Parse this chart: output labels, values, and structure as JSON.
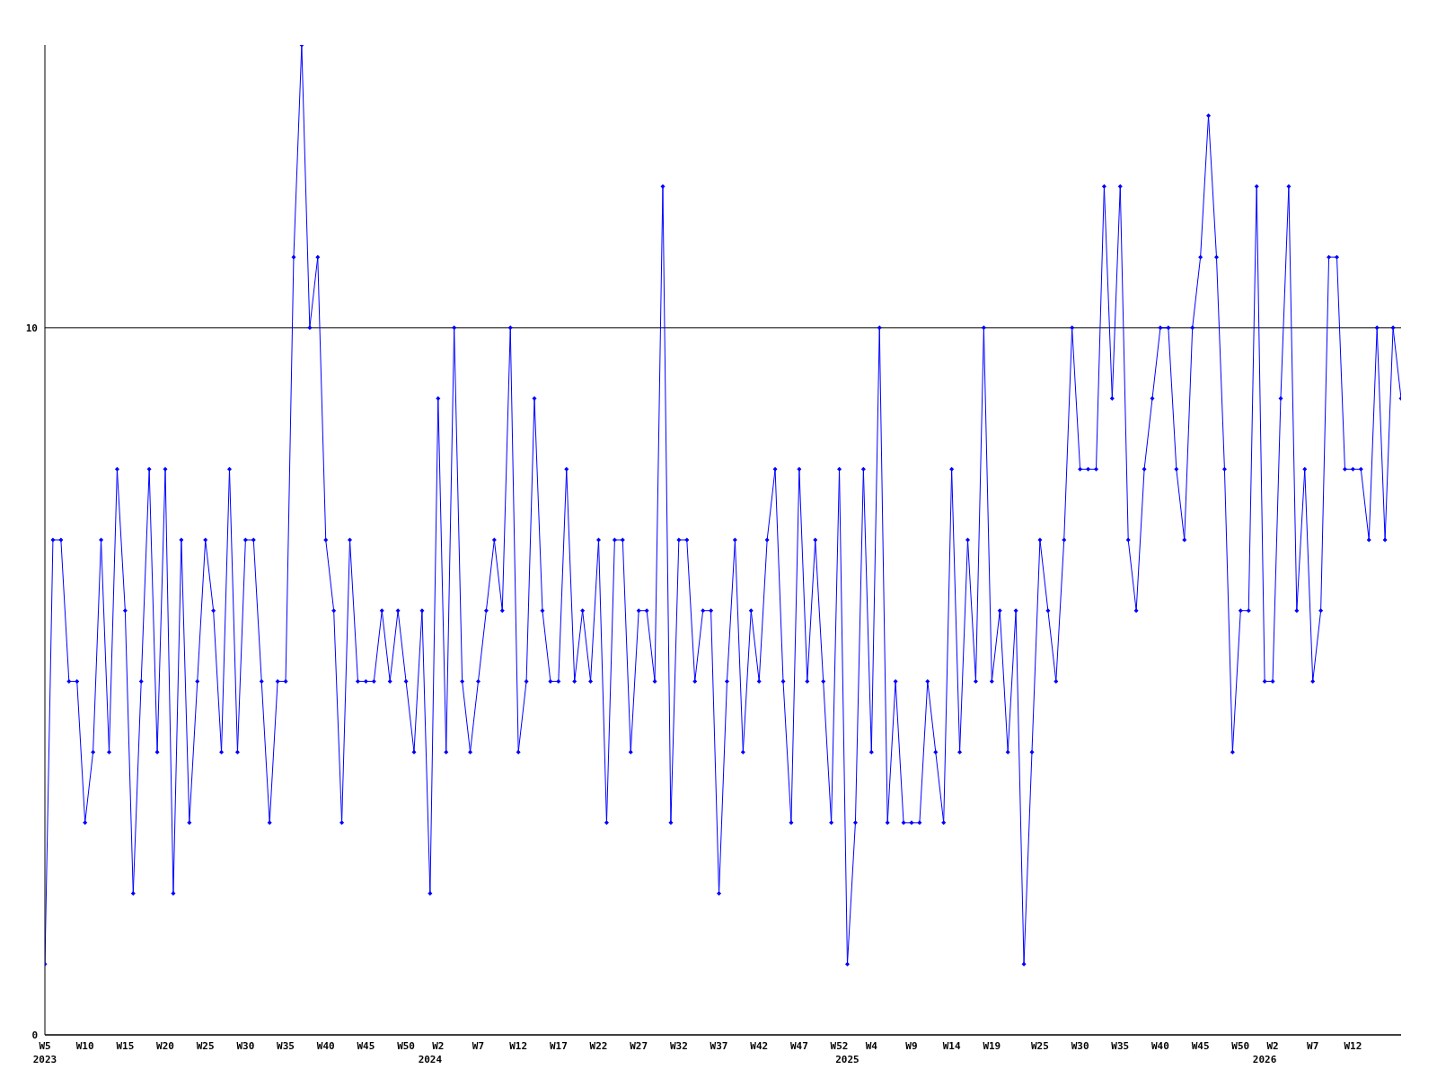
{
  "chart_data": {
    "type": "line",
    "categories": [
      "W5\n2023",
      null,
      null,
      null,
      null,
      "W10",
      null,
      null,
      null,
      null,
      "W15",
      null,
      null,
      null,
      null,
      "W20",
      null,
      null,
      null,
      null,
      "W25",
      null,
      null,
      null,
      null,
      "W30",
      null,
      null,
      null,
      null,
      "W35",
      null,
      null,
      null,
      null,
      "W40",
      null,
      null,
      null,
      null,
      "W45",
      null,
      null,
      null,
      null,
      "W50",
      null,
      null,
      "\n2024",
      "W2",
      null,
      null,
      null,
      null,
      "W7",
      null,
      null,
      null,
      null,
      "W12",
      null,
      null,
      null,
      null,
      "W17",
      null,
      null,
      null,
      null,
      "W22",
      null,
      null,
      null,
      null,
      "W27",
      null,
      null,
      null,
      null,
      "W32",
      null,
      null,
      null,
      null,
      "W37",
      null,
      null,
      null,
      null,
      "W42",
      null,
      null,
      null,
      null,
      "W47",
      null,
      null,
      null,
      null,
      "W52",
      "\n2025",
      null,
      null,
      "W4",
      null,
      null,
      null,
      null,
      "W9",
      null,
      null,
      null,
      null,
      "W14",
      null,
      null,
      null,
      null,
      "W19",
      null,
      null,
      null,
      null,
      null,
      "W25",
      null,
      null,
      null,
      null,
      "W30",
      null,
      null,
      null,
      null,
      "W35",
      null,
      null,
      null,
      null,
      "W40",
      null,
      null,
      null,
      null,
      "W45",
      null,
      null,
      null,
      null,
      "W50",
      null,
      null,
      "\n2026",
      "W2",
      null,
      null,
      null,
      null,
      "W7",
      null,
      null,
      null,
      null,
      "W12",
      null,
      null,
      null,
      null,
      null,
      null
    ],
    "series": [
      {
        "color": "#0000ff",
        "values": [
          1,
          7,
          7,
          5,
          5,
          3,
          4,
          7,
          4,
          8,
          6,
          2,
          5,
          8,
          4,
          8,
          2,
          7,
          3,
          5,
          7,
          6,
          4,
          8,
          4,
          7,
          7,
          5,
          3,
          5,
          5,
          11,
          14,
          10,
          11,
          7,
          6,
          3,
          7,
          5,
          5,
          5,
          6,
          5,
          6,
          5,
          4,
          6,
          2,
          9,
          4,
          10,
          5,
          4,
          5,
          6,
          7,
          6,
          10,
          4,
          5,
          9,
          6,
          5,
          5,
          8,
          5,
          6,
          5,
          7,
          3,
          7,
          7,
          4,
          6,
          6,
          5,
          12,
          3,
          7,
          7,
          5,
          6,
          6,
          2,
          5,
          7,
          4,
          6,
          5,
          7,
          8,
          5,
          3,
          8,
          5,
          7,
          5,
          3,
          8,
          1,
          3,
          8,
          4,
          10,
          3,
          5,
          3,
          3,
          3,
          5,
          4,
          3,
          8,
          4,
          7,
          5,
          10,
          5,
          6,
          4,
          6,
          1,
          4,
          7,
          6,
          5,
          7,
          10,
          8,
          8,
          8,
          12,
          9,
          12,
          7,
          6,
          8,
          9,
          10,
          10,
          8,
          7,
          10,
          11,
          13,
          11,
          8,
          4,
          6,
          6,
          12,
          5,
          5,
          9,
          12,
          6,
          8,
          5,
          6,
          11,
          11,
          8,
          8,
          8,
          7,
          10,
          7,
          10,
          9
        ]
      }
    ],
    "ylim": [
      0,
      14
    ],
    "yticks": [
      0,
      10
    ],
    "grid": "y",
    "marker": "diamond",
    "line_style": "solid"
  }
}
